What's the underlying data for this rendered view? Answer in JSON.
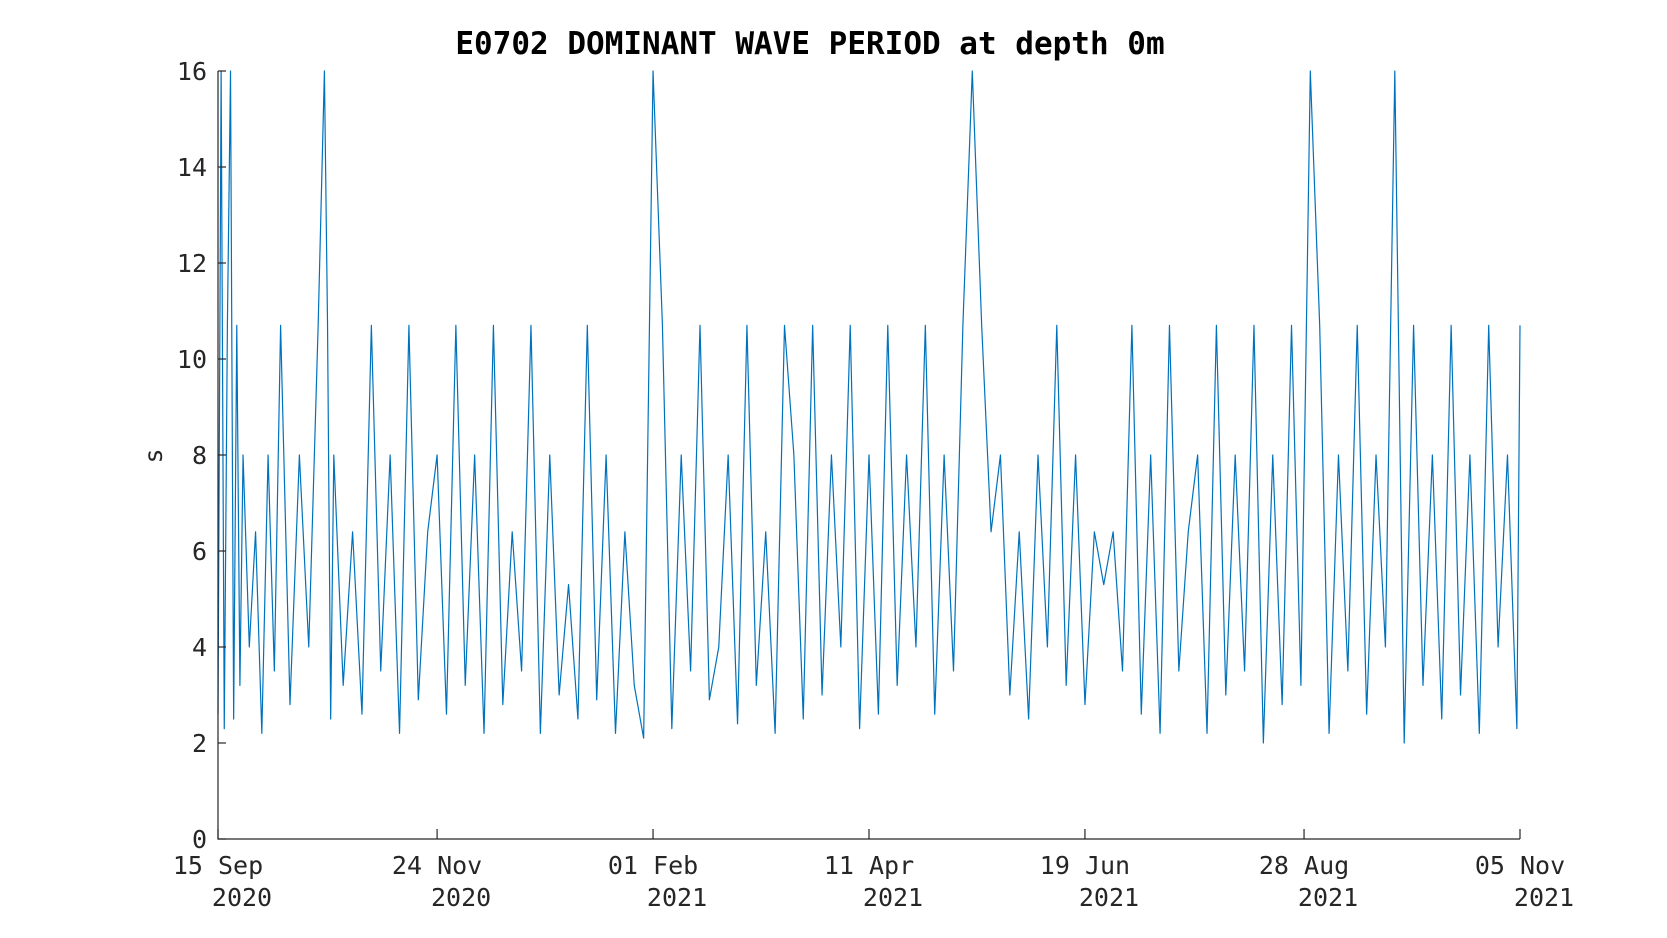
{
  "chart_data": {
    "type": "line",
    "title": "E0702 DOMINANT WAVE PERIOD at depth 0m",
    "xlabel": "",
    "ylabel": "s",
    "ylim": [
      0,
      16
    ],
    "xlim": [
      "2020-09-15",
      "2021-11-05"
    ],
    "yticks": [
      0,
      2,
      4,
      6,
      8,
      10,
      12,
      14,
      16
    ],
    "xticks": [
      {
        "date": "2020-09-15",
        "line1": "15 Sep",
        "line2": "2020"
      },
      {
        "date": "2020-11-24",
        "line1": "24 Nov",
        "line2": "2020"
      },
      {
        "date": "2021-02-01",
        "line1": "01 Feb",
        "line2": "2021"
      },
      {
        "date": "2021-04-11",
        "line1": "11 Apr",
        "line2": "2021"
      },
      {
        "date": "2021-06-19",
        "line1": "19 Jun",
        "line2": "2021"
      },
      {
        "date": "2021-08-28",
        "line1": "28 Aug",
        "line2": "2021"
      },
      {
        "date": "2021-11-05",
        "line1": "05 Nov",
        "line2": "2021"
      }
    ],
    "grid": false,
    "series": [
      {
        "color": "#0072BD",
        "x": [
          "2020-09-15",
          "2020-09-16",
          "2020-09-17",
          "2020-09-18",
          "2020-09-19",
          "2020-09-20",
          "2020-09-21",
          "2020-09-22",
          "2020-09-23",
          "2020-09-25",
          "2020-09-27",
          "2020-09-29",
          "2020-10-01",
          "2020-10-03",
          "2020-10-05",
          "2020-10-08",
          "2020-10-11",
          "2020-10-14",
          "2020-10-17",
          "2020-10-19",
          "2020-10-20",
          "2020-10-21",
          "2020-10-22",
          "2020-10-25",
          "2020-10-28",
          "2020-10-31",
          "2020-11-03",
          "2020-11-06",
          "2020-11-09",
          "2020-11-12",
          "2020-11-15",
          "2020-11-18",
          "2020-11-21",
          "2020-11-24",
          "2020-11-27",
          "2020-11-30",
          "2020-12-03",
          "2020-12-06",
          "2020-12-09",
          "2020-12-12",
          "2020-12-15",
          "2020-12-18",
          "2020-12-21",
          "2020-12-24",
          "2020-12-27",
          "2020-12-30",
          "2021-01-02",
          "2021-01-05",
          "2021-01-08",
          "2021-01-11",
          "2021-01-14",
          "2021-01-17",
          "2021-01-20",
          "2021-01-23",
          "2021-01-26",
          "2021-01-29",
          "2021-02-01",
          "2021-02-04",
          "2021-02-07",
          "2021-02-10",
          "2021-02-13",
          "2021-02-16",
          "2021-02-19",
          "2021-02-22",
          "2021-02-25",
          "2021-02-28",
          "2021-03-03",
          "2021-03-06",
          "2021-03-09",
          "2021-03-12",
          "2021-03-15",
          "2021-03-18",
          "2021-03-21",
          "2021-03-24",
          "2021-03-27",
          "2021-03-30",
          "2021-04-02",
          "2021-04-05",
          "2021-04-08",
          "2021-04-11",
          "2021-04-14",
          "2021-04-17",
          "2021-04-20",
          "2021-04-23",
          "2021-04-26",
          "2021-04-29",
          "2021-05-02",
          "2021-05-05",
          "2021-05-08",
          "2021-05-11",
          "2021-05-14",
          "2021-05-17",
          "2021-05-20",
          "2021-05-23",
          "2021-05-26",
          "2021-05-29",
          "2021-06-01",
          "2021-06-04",
          "2021-06-07",
          "2021-06-10",
          "2021-06-13",
          "2021-06-16",
          "2021-06-19",
          "2021-06-22",
          "2021-06-25",
          "2021-06-28",
          "2021-07-01",
          "2021-07-04",
          "2021-07-07",
          "2021-07-10",
          "2021-07-13",
          "2021-07-16",
          "2021-07-19",
          "2021-07-22",
          "2021-07-25",
          "2021-07-28",
          "2021-07-31",
          "2021-08-03",
          "2021-08-06",
          "2021-08-09",
          "2021-08-12",
          "2021-08-15",
          "2021-08-18",
          "2021-08-21",
          "2021-08-24",
          "2021-08-27",
          "2021-08-30",
          "2021-09-02",
          "2021-09-05",
          "2021-09-08",
          "2021-09-11",
          "2021-09-14",
          "2021-09-17",
          "2021-09-20",
          "2021-09-23",
          "2021-09-26",
          "2021-09-29",
          "2021-10-02",
          "2021-10-05",
          "2021-10-08",
          "2021-10-11",
          "2021-10-14",
          "2021-10-17",
          "2021-10-20",
          "2021-10-23",
          "2021-10-26",
          "2021-10-29",
          "2021-11-01",
          "2021-11-04",
          "2021-11-05"
        ],
        "y": [
          2.6,
          16,
          2.3,
          10.7,
          16,
          2.5,
          10.7,
          3.2,
          8,
          4,
          6.4,
          2.2,
          8,
          3.5,
          10.7,
          2.8,
          8,
          4,
          10.7,
          16,
          10.7,
          2.5,
          8,
          3.2,
          6.4,
          2.6,
          10.7,
          3.5,
          8,
          2.2,
          10.7,
          2.9,
          6.4,
          8,
          2.6,
          10.7,
          3.2,
          8,
          2.2,
          10.7,
          2.8,
          6.4,
          3.5,
          10.7,
          2.2,
          8,
          3.0,
          5.3,
          2.5,
          10.7,
          2.9,
          8,
          2.2,
          6.4,
          3.2,
          2.1,
          16,
          10.7,
          2.3,
          8,
          3.5,
          10.7,
          2.9,
          4,
          8,
          2.4,
          10.7,
          3.2,
          6.4,
          2.2,
          10.7,
          8,
          2.5,
          10.7,
          3.0,
          8,
          4,
          10.7,
          2.3,
          8,
          2.6,
          10.7,
          3.2,
          8,
          4,
          10.7,
          2.6,
          8,
          3.5,
          10.7,
          16,
          10.7,
          6.4,
          8,
          3.0,
          6.4,
          2.5,
          8,
          4,
          10.7,
          3.2,
          8,
          2.8,
          6.4,
          5.3,
          6.4,
          3.5,
          10.7,
          2.6,
          8,
          2.2,
          10.7,
          3.5,
          6.4,
          8,
          2.2,
          10.7,
          3.0,
          8,
          3.5,
          10.7,
          2.0,
          8,
          2.8,
          10.7,
          3.2,
          16,
          10.7,
          2.2,
          8,
          3.5,
          10.7,
          2.6,
          8,
          4,
          16,
          2.0,
          10.7,
          3.2,
          8,
          2.5,
          10.7,
          3.0,
          8,
          2.2,
          10.7,
          4,
          8,
          2.3,
          10.7
        ]
      }
    ]
  }
}
